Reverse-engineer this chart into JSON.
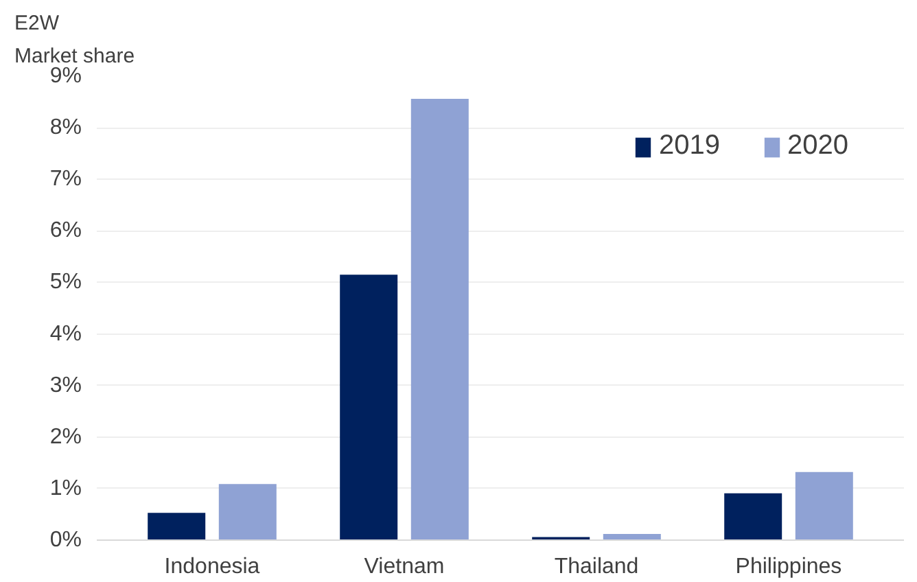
{
  "chart_data": {
    "type": "bar",
    "ylabel": "E2W\nMarket share",
    "categories": [
      "Indonesia",
      "Vietnam",
      "Thailand",
      "Philippines"
    ],
    "series": [
      {
        "name": "2019",
        "color": "#00215e",
        "values": [
          0.53,
          5.15,
          0.06,
          0.91
        ]
      },
      {
        "name": "2020",
        "color": "#8fa2d4",
        "values": [
          1.09,
          8.56,
          0.12,
          1.32
        ]
      }
    ],
    "ylim": [
      0,
      9
    ],
    "yticks": [
      {
        "value": 0,
        "label": "0%"
      },
      {
        "value": 1,
        "label": "1%"
      },
      {
        "value": 2,
        "label": "2%"
      },
      {
        "value": 3,
        "label": "3%"
      },
      {
        "value": 4,
        "label": "4%"
      },
      {
        "value": 5,
        "label": "5%"
      },
      {
        "value": 6,
        "label": "6%"
      },
      {
        "value": 7,
        "label": "7%"
      },
      {
        "value": 8,
        "label": "8%"
      },
      {
        "value": 9,
        "label": "9%"
      }
    ],
    "grid": "y",
    "legend": "top right"
  }
}
